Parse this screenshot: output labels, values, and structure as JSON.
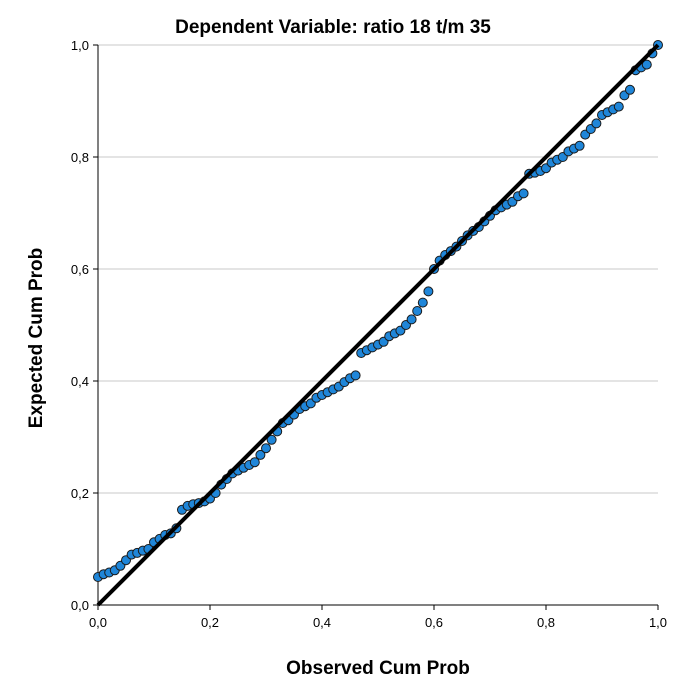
{
  "chart_data": {
    "type": "scatter",
    "title": "Dependent Variable: ratio 18 t/m 35",
    "xlabel": "Observed Cum Prob",
    "ylabel": "Expected Cum Prob",
    "xlim": [
      0,
      1
    ],
    "ylim": [
      0,
      1
    ],
    "xticks": [
      "0,0",
      "0,2",
      "0,4",
      "0,6",
      "0,8",
      "1,0"
    ],
    "yticks": [
      "0,0",
      "0,2",
      "0,4",
      "0,6",
      "0,8",
      "1,0"
    ],
    "grid": "horizontal",
    "reference_line": {
      "from": [
        0,
        0
      ],
      "to": [
        1,
        1
      ]
    },
    "point_color": "#1f86d9",
    "points": [
      [
        0.0,
        0.05
      ],
      [
        0.01,
        0.055
      ],
      [
        0.02,
        0.058
      ],
      [
        0.03,
        0.062
      ],
      [
        0.04,
        0.07
      ],
      [
        0.05,
        0.08
      ],
      [
        0.06,
        0.09
      ],
      [
        0.07,
        0.093
      ],
      [
        0.08,
        0.097
      ],
      [
        0.09,
        0.1
      ],
      [
        0.1,
        0.112
      ],
      [
        0.11,
        0.118
      ],
      [
        0.12,
        0.125
      ],
      [
        0.13,
        0.128
      ],
      [
        0.14,
        0.137
      ],
      [
        0.15,
        0.17
      ],
      [
        0.16,
        0.177
      ],
      [
        0.17,
        0.18
      ],
      [
        0.18,
        0.182
      ],
      [
        0.19,
        0.185
      ],
      [
        0.2,
        0.19
      ],
      [
        0.21,
        0.2
      ],
      [
        0.22,
        0.215
      ],
      [
        0.23,
        0.225
      ],
      [
        0.24,
        0.235
      ],
      [
        0.25,
        0.24
      ],
      [
        0.26,
        0.245
      ],
      [
        0.27,
        0.25
      ],
      [
        0.28,
        0.255
      ],
      [
        0.29,
        0.268
      ],
      [
        0.3,
        0.28
      ],
      [
        0.31,
        0.295
      ],
      [
        0.32,
        0.31
      ],
      [
        0.33,
        0.325
      ],
      [
        0.34,
        0.33
      ],
      [
        0.35,
        0.34
      ],
      [
        0.36,
        0.35
      ],
      [
        0.37,
        0.355
      ],
      [
        0.38,
        0.36
      ],
      [
        0.39,
        0.37
      ],
      [
        0.4,
        0.375
      ],
      [
        0.41,
        0.38
      ],
      [
        0.42,
        0.385
      ],
      [
        0.43,
        0.39
      ],
      [
        0.44,
        0.398
      ],
      [
        0.45,
        0.405
      ],
      [
        0.46,
        0.41
      ],
      [
        0.47,
        0.45
      ],
      [
        0.48,
        0.455
      ],
      [
        0.49,
        0.46
      ],
      [
        0.5,
        0.465
      ],
      [
        0.51,
        0.47
      ],
      [
        0.52,
        0.48
      ],
      [
        0.53,
        0.485
      ],
      [
        0.54,
        0.49
      ],
      [
        0.55,
        0.5
      ],
      [
        0.56,
        0.51
      ],
      [
        0.57,
        0.525
      ],
      [
        0.58,
        0.54
      ],
      [
        0.59,
        0.56
      ],
      [
        0.6,
        0.6
      ],
      [
        0.61,
        0.615
      ],
      [
        0.62,
        0.625
      ],
      [
        0.63,
        0.632
      ],
      [
        0.64,
        0.64
      ],
      [
        0.65,
        0.65
      ],
      [
        0.66,
        0.66
      ],
      [
        0.67,
        0.668
      ],
      [
        0.68,
        0.675
      ],
      [
        0.69,
        0.685
      ],
      [
        0.7,
        0.695
      ],
      [
        0.71,
        0.705
      ],
      [
        0.72,
        0.71
      ],
      [
        0.73,
        0.715
      ],
      [
        0.74,
        0.72
      ],
      [
        0.75,
        0.73
      ],
      [
        0.76,
        0.735
      ],
      [
        0.77,
        0.77
      ],
      [
        0.78,
        0.772
      ],
      [
        0.79,
        0.775
      ],
      [
        0.8,
        0.78
      ],
      [
        0.81,
        0.79
      ],
      [
        0.82,
        0.795
      ],
      [
        0.83,
        0.8
      ],
      [
        0.84,
        0.81
      ],
      [
        0.85,
        0.815
      ],
      [
        0.86,
        0.82
      ],
      [
        0.87,
        0.84
      ],
      [
        0.88,
        0.85
      ],
      [
        0.89,
        0.86
      ],
      [
        0.9,
        0.875
      ],
      [
        0.91,
        0.88
      ],
      [
        0.92,
        0.885
      ],
      [
        0.93,
        0.89
      ],
      [
        0.94,
        0.91
      ],
      [
        0.95,
        0.92
      ],
      [
        0.96,
        0.955
      ],
      [
        0.97,
        0.96
      ],
      [
        0.98,
        0.965
      ],
      [
        0.99,
        0.985
      ],
      [
        1.0,
        1.0
      ]
    ]
  }
}
